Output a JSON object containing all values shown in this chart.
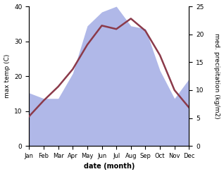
{
  "months": [
    "Jan",
    "Feb",
    "Mar",
    "Apr",
    "May",
    "Jun",
    "Jul",
    "Aug",
    "Sep",
    "Oct",
    "Nov",
    "Dec"
  ],
  "temp_max": [
    8.5,
    13.0,
    17.0,
    22.0,
    29.0,
    34.5,
    33.5,
    36.5,
    33.0,
    26.0,
    16.0,
    11.0
  ],
  "precipitation": [
    9.5,
    8.5,
    8.5,
    13.0,
    21.5,
    24.0,
    25.0,
    21.5,
    21.0,
    13.5,
    8.5,
    12.0
  ],
  "temp_color": "#8B3A4A",
  "precip_fill_color": "#b0b8e8",
  "precip_fill_alpha": 1.0,
  "temp_ylim": [
    0,
    40
  ],
  "precip_ylim": [
    0,
    25
  ],
  "xlabel": "date (month)",
  "ylabel_left": "max temp (C)",
  "ylabel_right": "med. precipitation (kg/m2)",
  "temp_lw": 1.8,
  "bg_color": "#ffffff",
  "tick_fontsize": 6.5,
  "label_fontsize": 7.0
}
